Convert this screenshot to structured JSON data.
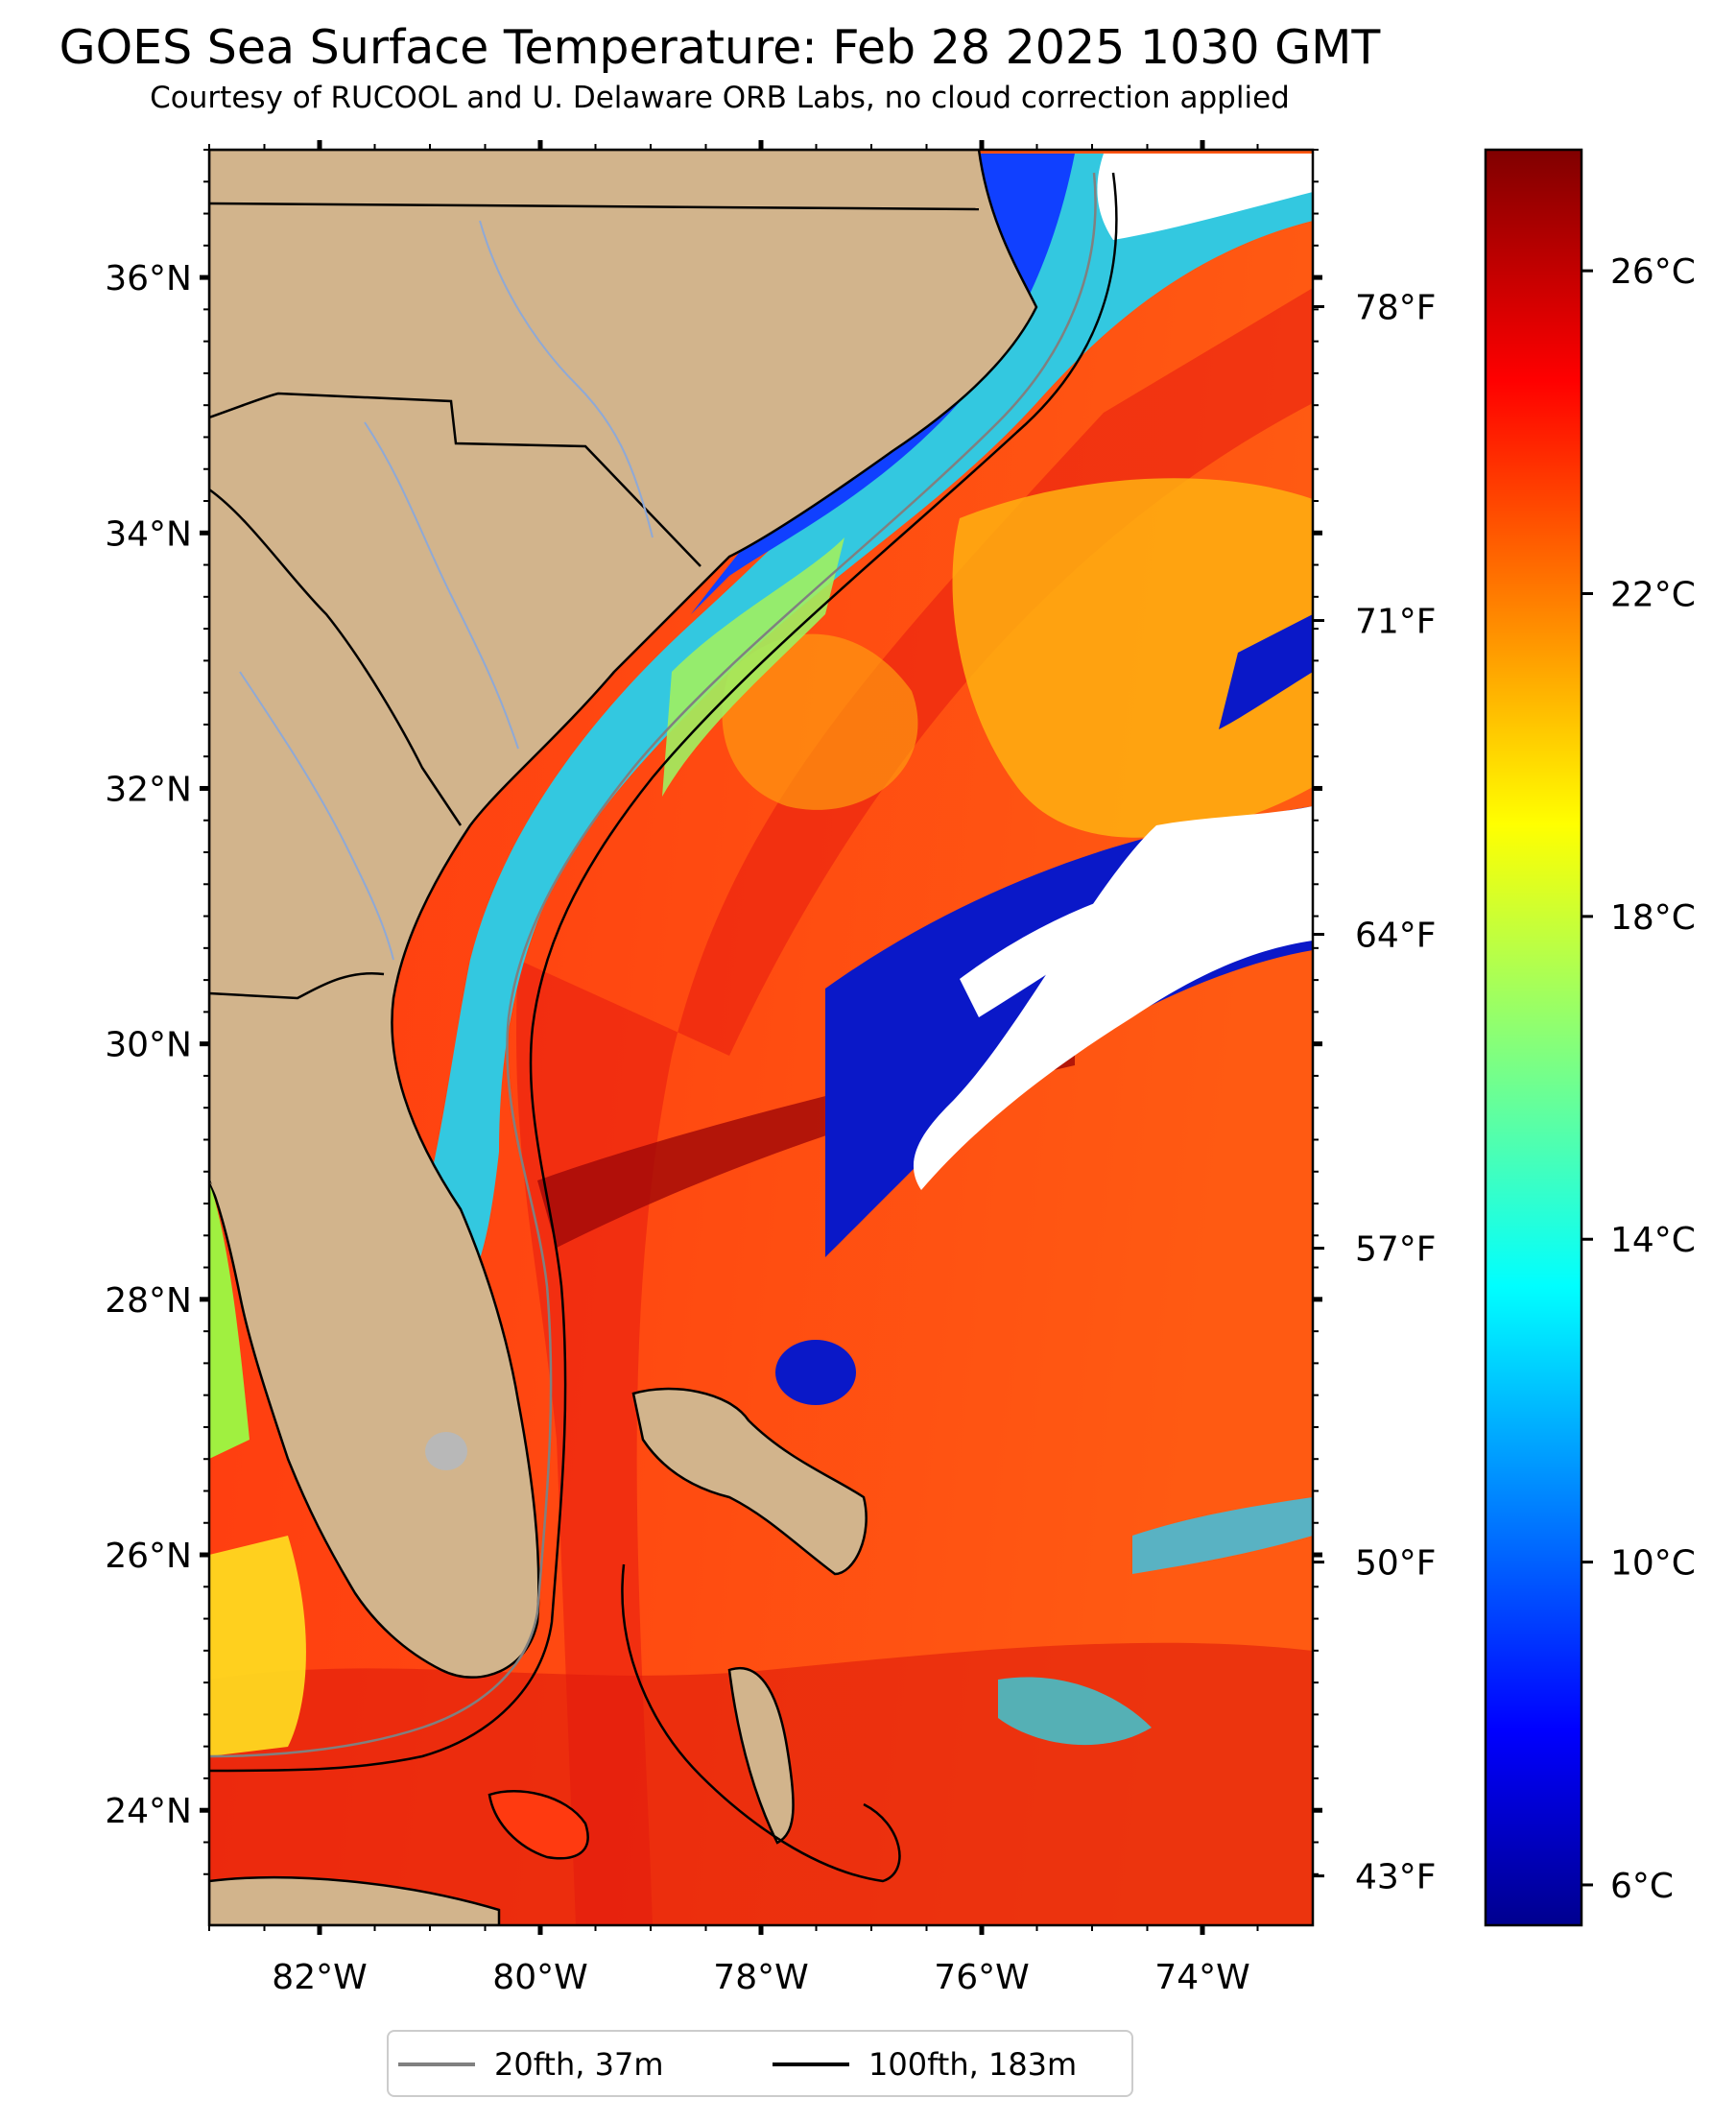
{
  "title": "GOES Sea Surface Temperature: Feb 28 2025 1030 GMT",
  "subtitle": "Courtesy of RUCOOL and U. Delaware ORB Labs, no cloud correction applied",
  "map": {
    "lon_range": [
      -83,
      -73
    ],
    "lat_range": [
      23.1,
      37
    ],
    "lon_ticks": [
      "82°W",
      "80°W",
      "78°W",
      "76°W",
      "74°W"
    ],
    "lat_ticks": [
      "36°N",
      "34°N",
      "32°N",
      "30°N",
      "28°N",
      "26°N",
      "24°N"
    ],
    "f_ticks": [
      "78°F",
      "71°F",
      "64°F",
      "57°F",
      "50°F",
      "43°F"
    ],
    "colors": {
      "land": "#d2b48c",
      "cloud": "#ffffff",
      "rivers": "#8fa9d6",
      "borders": "#000000"
    }
  },
  "colorbar": {
    "ticks": [
      "26°C",
      "22°C",
      "18°C",
      "14°C",
      "10°C",
      "6°C"
    ],
    "colormap": "jet",
    "range_c": [
      5.5,
      27.5
    ]
  },
  "legend": {
    "items": [
      {
        "label": "20fth, 37m",
        "color": "#808080"
      },
      {
        "label": "100fth, 183m",
        "color": "#000000"
      }
    ]
  }
}
